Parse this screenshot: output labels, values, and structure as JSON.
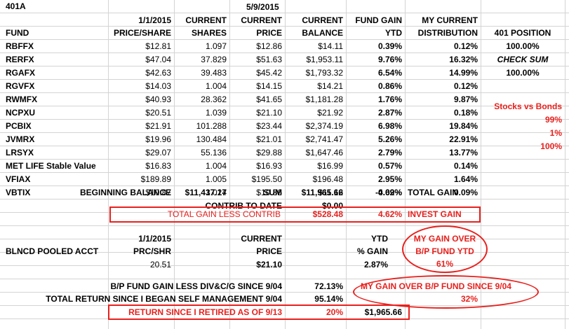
{
  "title": "401A",
  "dates": {
    "start": "1/1/2015",
    "current": "5/9/2015"
  },
  "headers": {
    "fund": "FUND",
    "price_share": "PRICE/SHARE",
    "current1": "CURRENT",
    "shares": "SHARES",
    "current2": "CURRENT",
    "price": "PRICE",
    "current3": "CURRENT",
    "balance": "BALANCE",
    "fund_gain": "FUND GAIN",
    "ytd": "YTD",
    "my_current": "MY CURRENT",
    "distribution": "DISTRIBUTION",
    "position": "401 POSITION"
  },
  "rows": [
    {
      "fund": "RBFFX",
      "p0": "$12.81",
      "shares": "1.097",
      "price": "$12.86",
      "bal": "$14.11",
      "gain": "0.39%",
      "dist": "0.12%"
    },
    {
      "fund": "RERFX",
      "p0": "$47.04",
      "shares": "37.829",
      "price": "$51.63",
      "bal": "$1,953.11",
      "gain": "9.76%",
      "dist": "16.32%"
    },
    {
      "fund": "RGAFX",
      "p0": "$42.63",
      "shares": "39.483",
      "price": "$45.42",
      "bal": "$1,793.32",
      "gain": "6.54%",
      "dist": "14.99%"
    },
    {
      "fund": "RGVFX",
      "p0": "$14.03",
      "shares": "1.004",
      "price": "$14.15",
      "bal": "$14.21",
      "gain": "0.86%",
      "dist": "0.12%"
    },
    {
      "fund": "RWMFX",
      "p0": "$40.93",
      "shares": "28.362",
      "price": "$41.65",
      "bal": "$1,181.28",
      "gain": "1.76%",
      "dist": "9.87%"
    },
    {
      "fund": "NCPXU",
      "p0": "$20.51",
      "shares": "1.039",
      "price": "$21.10",
      "bal": "$21.92",
      "gain": "2.87%",
      "dist": "0.18%"
    },
    {
      "fund": "PCBIX",
      "p0": "$21.91",
      "shares": "101.288",
      "price": "$23.44",
      "bal": "$2,374.19",
      "gain": "6.98%",
      "dist": "19.84%"
    },
    {
      "fund": "JVMRX",
      "p0": "$19.96",
      "shares": "130.484",
      "price": "$21.01",
      "bal": "$2,741.47",
      "gain": "5.26%",
      "dist": "22.91%"
    },
    {
      "fund": "LRSYX",
      "p0": "$29.07",
      "shares": "55.136",
      "price": "$29.88",
      "bal": "$1,647.46",
      "gain": "2.79%",
      "dist": "13.77%"
    },
    {
      "fund": "MET LIFE Stable Value",
      "p0": "$16.83",
      "shares": "1.004",
      "price": "$16.93",
      "bal": "$16.99",
      "gain": "0.57%",
      "dist": "0.14%"
    },
    {
      "fund": "VFIAX",
      "p0": "$189.89",
      "shares": "1.005",
      "price": "$195.50",
      "bal": "$196.48",
      "gain": "2.95%",
      "dist": "1.64%"
    },
    {
      "fund": "VBTIX",
      "p0": "$10.87",
      "shares": "1.024",
      "price": "$10.86",
      "bal": "$11.12",
      "gain": "-0.09%",
      "dist": "0.09%"
    }
  ],
  "side": {
    "position_value": "100.00%",
    "check_sum": "CHECK SUM",
    "check_value": "100.00%",
    "stocks_vs_bonds": "Stocks vs Bonds",
    "v1": "99%",
    "v2": "1%",
    "v3": "100%"
  },
  "totals": {
    "beginning_label": "BEGINNING BALANCE",
    "beginning_value": "$11,437.17",
    "sum_label": "SUM",
    "sum_value": "$11,965.66",
    "total_gain_pct": "4.62%",
    "total_gain_label": "TOTAL GAIN",
    "contrib_label": "CONTRIB TO DATE",
    "contrib_value": "$0.00",
    "less_contrib_label": "TOTAL GAIN LESS CONTRIB",
    "less_contrib_value": "$528.48",
    "invest_pct": "4.62%",
    "invest_label": "INVEST GAIN"
  },
  "pooled": {
    "date": "1/1/2015",
    "current": "CURRENT",
    "label": "BLNCD POOLED ACCT",
    "prc_shr": "PRC/SHR",
    "price": "PRICE",
    "ytd": "YTD",
    "pct_gain": "% GAIN",
    "v_prc": "20.51",
    "v_price": "$21.10",
    "v_gain": "2.87%",
    "my_gain_over": "MY GAIN OVER",
    "bp_fund_ytd": "B/P FUND YTD",
    "my_gain_value": "61%"
  },
  "bottom": {
    "bp_label": "B/P FUND GAIN LESS DIV&C/G SINCE 9/04",
    "bp_value": "72.13%",
    "total_return_label": "TOTAL RETURN SINCE I BEGAN SELF MANAGEMENT 9/04",
    "total_return_value": "95.14%",
    "my_gain_over_bp": "MY GAIN OVER  B/P FUND  SINCE 9/04",
    "my_gain_over_bp_value": "32%",
    "retired_label": "RETURN SINCE I RETIRED AS OF 9/13",
    "retired_pct": "20%",
    "retired_value": "$1,965.66"
  },
  "colors": {
    "accent": "#e8211d",
    "gridline": "#d4d4d4"
  }
}
